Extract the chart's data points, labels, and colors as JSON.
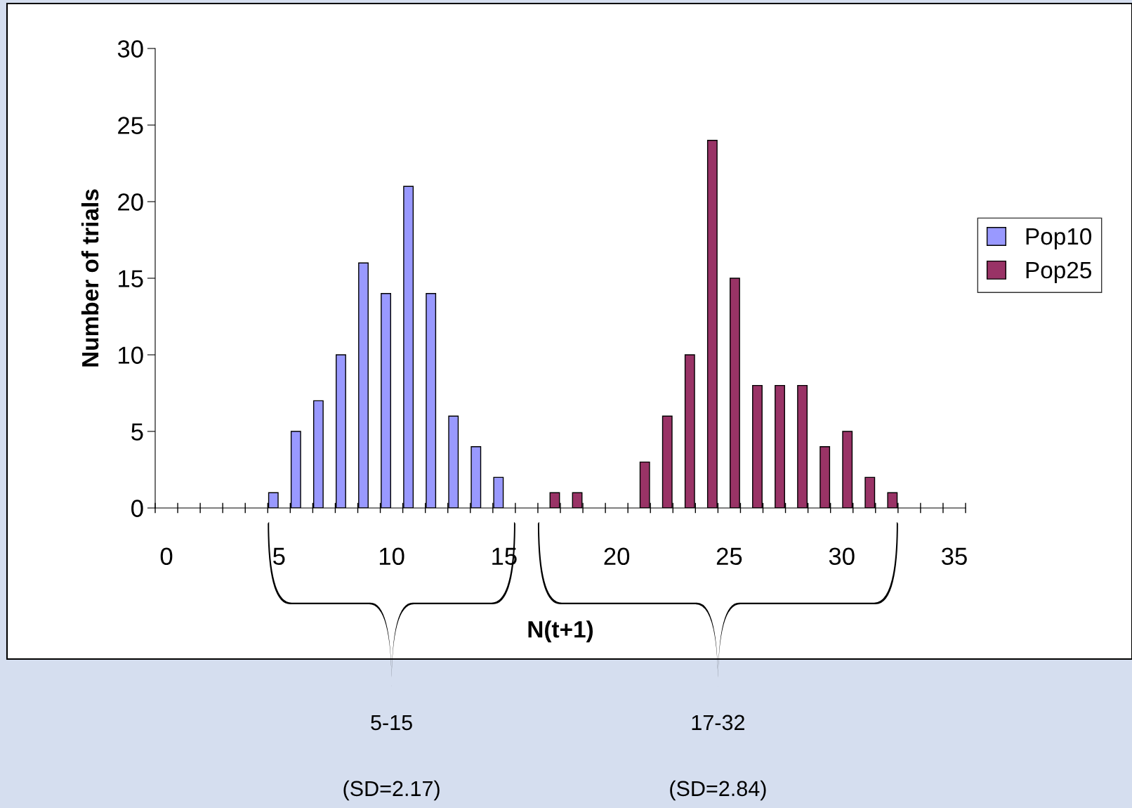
{
  "chart_data": {
    "type": "bar",
    "xlabel": "N(t+1)",
    "ylabel": "Number of trials",
    "categories": [
      "0",
      null,
      null,
      null,
      null,
      "5",
      null,
      null,
      null,
      null,
      "10",
      null,
      null,
      null,
      null,
      "15",
      null,
      null,
      null,
      null,
      "20",
      null,
      null,
      null,
      null,
      "25",
      null,
      null,
      null,
      null,
      "30",
      null,
      null,
      null,
      null,
      "35"
    ],
    "series": [
      {
        "name": "Pop10",
        "color": "#9999ff",
        "values": [
          null,
          null,
          null,
          null,
          null,
          1,
          5,
          7,
          10,
          16,
          14,
          21,
          14,
          6,
          4,
          2,
          null,
          null,
          null,
          null,
          null,
          null,
          null,
          null,
          null,
          null,
          null,
          null,
          null,
          null,
          null,
          null,
          null,
          null,
          null,
          null
        ]
      },
      {
        "name": "Pop25",
        "color": "#993366",
        "values": [
          null,
          null,
          null,
          null,
          null,
          null,
          null,
          null,
          null,
          null,
          null,
          null,
          null,
          null,
          null,
          null,
          null,
          1,
          1,
          null,
          null,
          3,
          6,
          10,
          24,
          15,
          8,
          8,
          8,
          4,
          5,
          2,
          1,
          null,
          null,
          null
        ]
      }
    ],
    "ylim": [
      0,
      30
    ],
    "yticks": [
      0,
      5,
      10,
      15,
      20,
      25,
      30
    ],
    "grid": false,
    "legend": "right",
    "annotations": [
      "5-15",
      "(SD=2.17)",
      "17-32",
      "(SD=2.84)"
    ]
  }
}
